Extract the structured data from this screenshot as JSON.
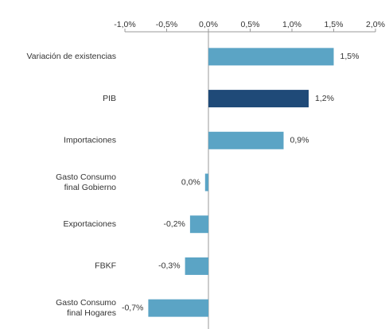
{
  "chart_data": {
    "type": "bar",
    "orientation": "horizontal",
    "categories": [
      "Variación de existencias",
      "PIB",
      "Importaciones",
      "Gasto Consumo\nfinal Gobierno",
      "Exportaciones",
      "FBKF",
      "Gasto Consumo\nfinal Hogares"
    ],
    "values": [
      1.5,
      1.2,
      0.9,
      -0.04,
      -0.22,
      -0.28,
      -0.72
    ],
    "value_labels": [
      "1,5%",
      "1,2%",
      "0,9%",
      "0,0%",
      "-0,2%",
      "-0,3%",
      "-0,7%"
    ],
    "colors": [
      "#5ba4c5",
      "#1f4a78",
      "#5ba4c5",
      "#5ba4c5",
      "#5ba4c5",
      "#5ba4c5",
      "#5ba4c5"
    ],
    "xlim": [
      -1.0,
      2.0
    ],
    "xticks": [
      {
        "value": -1.0,
        "label": "-1,0%"
      },
      {
        "value": -0.5,
        "label": "-0,5%"
      },
      {
        "value": 0.0,
        "label": "0,0%"
      },
      {
        "value": 0.5,
        "label": "0,5%"
      },
      {
        "value": 1.0,
        "label": "1,0%"
      },
      {
        "value": 1.5,
        "label": "1,5%"
      },
      {
        "value": 2.0,
        "label": "2,0%"
      }
    ]
  }
}
